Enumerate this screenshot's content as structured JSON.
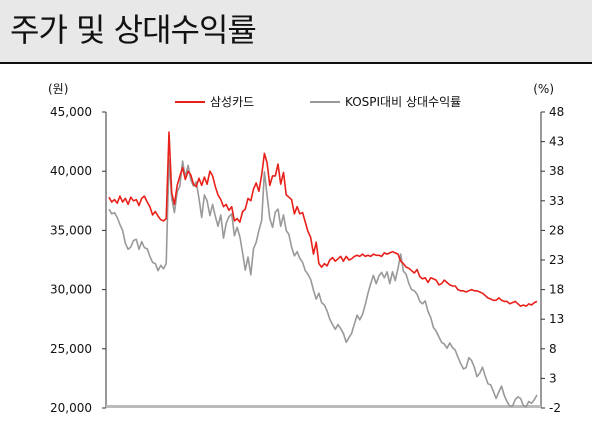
{
  "title": "주가 및 상대수익률",
  "chart_data": {
    "type": "line",
    "left_axis_label": "(원)",
    "right_axis_label": "(%)",
    "left_ylim": [
      20000,
      45000
    ],
    "left_ticks": [
      "45,000",
      "40,000",
      "35,000",
      "30,000",
      "25,000",
      "20,000"
    ],
    "right_ylim": [
      -2,
      48
    ],
    "right_ticks": [
      "48",
      "43",
      "38",
      "33",
      "28",
      "23",
      "18",
      "13",
      "8",
      "3",
      "-2"
    ],
    "legend_position": "top",
    "grid": false,
    "colors": {
      "price": "#e8201a",
      "relative": "#999999",
      "baseline": "#bbbbbb"
    },
    "series": [
      {
        "name": "삼성카드",
        "axis": "left",
        "values": [
          37800,
          37400,
          37600,
          37300,
          37900,
          37400,
          37700,
          37200,
          37800,
          37500,
          37600,
          37100,
          37700,
          37900,
          37400,
          37000,
          36300,
          36600,
          36200,
          35900,
          35800,
          36000,
          43300,
          38200,
          37200,
          38800,
          39600,
          40300,
          39300,
          40000,
          39700,
          38900,
          38700,
          39400,
          38800,
          39500,
          38900,
          40000,
          39600,
          38700,
          38000,
          37600,
          37000,
          37200,
          36700,
          37000,
          35800,
          36000,
          35700,
          36600,
          36800,
          37700,
          37500,
          38500,
          39000,
          38300,
          39700,
          41500,
          40700,
          38800,
          39600,
          39600,
          40600,
          38900,
          39900,
          38000,
          37800,
          37600,
          36400,
          37000,
          36400,
          36500,
          35700,
          34900,
          34400,
          33000,
          34000,
          32200,
          31900,
          32200,
          32000,
          32500,
          32700,
          32400,
          32600,
          32800,
          32400,
          32800,
          32500,
          32600,
          32800,
          32900,
          32800,
          33000,
          32800,
          32900,
          32800,
          33000,
          32900,
          32900,
          32800,
          33100,
          33000,
          33100,
          33200,
          33100,
          33000,
          32400,
          32200,
          31900,
          31800,
          31600,
          31400,
          31700,
          31100,
          30900,
          31000,
          30600,
          31000,
          30900,
          30800,
          30400,
          30500,
          30800,
          30600,
          30400,
          30300,
          30300,
          30000,
          29900,
          29900,
          29800,
          29900,
          30000,
          29900,
          29900,
          29800,
          29700,
          29500,
          29300,
          29200,
          29100,
          29100,
          29300,
          29100,
          29000,
          29000,
          28800,
          28900,
          29000,
          28800,
          28600,
          28700,
          28600,
          28800,
          28700,
          28900,
          29000
        ]
      },
      {
        "name": "KOSPI대비 상대수익률",
        "axis": "right",
        "values": [
          31.6,
          30.8,
          31.0,
          30.2,
          29.0,
          28.0,
          25.8,
          24.8,
          25.2,
          26.3,
          26.5,
          24.8,
          26.1,
          25.1,
          24.9,
          23.6,
          22.6,
          22.4,
          21.2,
          22.1,
          21.5,
          22.4,
          40.0,
          33.4,
          31.0,
          34.5,
          35.5,
          39.7,
          37.0,
          39.0,
          36.5,
          35.5,
          36.2,
          33.4,
          30.2,
          34.0,
          33.0,
          30.5,
          32.4,
          30.4,
          28.7,
          30.6,
          26.7,
          29.2,
          30.3,
          30.8,
          27.1,
          28.5,
          26.9,
          24.2,
          21.3,
          23.5,
          20.5,
          24.9,
          26.0,
          28.0,
          29.7,
          37.9,
          33.9,
          30.0,
          28.5,
          31.1,
          31.6,
          28.7,
          30.6,
          28.0,
          27.3,
          25.2,
          23.7,
          24.4,
          23.3,
          22.6,
          21.2,
          20.6,
          19.7,
          17.9,
          16.4,
          17.4,
          15.8,
          15.4,
          14.4,
          13.0,
          12.1,
          11.3,
          12.1,
          11.4,
          10.6,
          9.1,
          9.9,
          10.6,
          12.2,
          13.7,
          12.9,
          13.8,
          15.5,
          17.4,
          19.0,
          20.4,
          19.0,
          20.3,
          20.9,
          20.0,
          21.0,
          19.0,
          21.0,
          19.5,
          21.6,
          24.0,
          21.1,
          20.6,
          19.0,
          18.0,
          17.8,
          17.2,
          16.0,
          15.6,
          16.1,
          14.3,
          13.3,
          11.6,
          11.0,
          10.0,
          9.1,
          8.8,
          8.1,
          9.0,
          8.2,
          7.8,
          6.6,
          5.5,
          4.6,
          4.8,
          6.5,
          6.0,
          4.9,
          3.3,
          3.9,
          4.9,
          3.4,
          2.1,
          1.9,
          0.8,
          -0.4,
          0.7,
          1.7,
          0.1,
          -0.9,
          -1.7,
          -1.7,
          -0.6,
          -0.1,
          -0.4,
          -1.6,
          -1.8,
          -0.9,
          -1.2,
          -0.6,
          0.2
        ]
      }
    ]
  }
}
